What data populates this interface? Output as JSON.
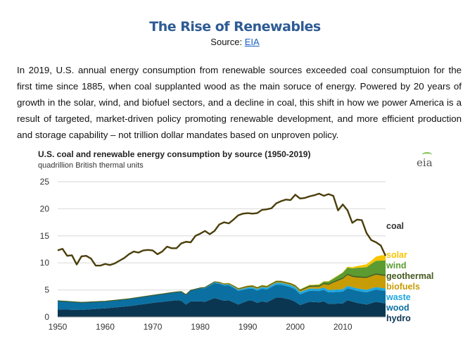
{
  "header": {
    "title": "The Rise of Renewables",
    "source_prefix": "Source: ",
    "source_link": "EIA"
  },
  "paragraph": "In 2019, U.S. annual energy consumption from renewable sources exceeded coal consumptuion for the first time since 1885, when coal supplanted wood as the main soruce of energy. Powered by 20 years of growth in the solar, wind, and biofuel sectors, and a decline in coal, this shift in how we power America is a result of targeted, market-driven policy promoting renewable development, and more efficient production and storage capability – not trillion dollar mandates based on unproven policy.",
  "logo_text": "eia",
  "chart_data": {
    "type": "area",
    "title": "U.S. coal and renewable energy consumption by source (1950-2019)",
    "subtitle": "quadrillion British thermal units",
    "xlim": [
      1950,
      2019
    ],
    "ylim": [
      0,
      25
    ],
    "x_ticks": [
      "1950",
      "1960",
      "1970",
      "1980",
      "1990",
      "2000",
      "2010"
    ],
    "y_ticks": [
      "0",
      "5",
      "10",
      "15",
      "20",
      "25"
    ],
    "grid": true,
    "legend_placement": "right",
    "stacked_series": [
      {
        "name": "hydro",
        "color": "#0b3651",
        "points": [
          [
            1950,
            1.4
          ],
          [
            1955,
            1.3
          ],
          [
            1960,
            1.6
          ],
          [
            1965,
            2.0
          ],
          [
            1970,
            2.6
          ],
          [
            1975,
            3.1
          ],
          [
            1976,
            3.0
          ],
          [
            1977,
            2.3
          ],
          [
            1978,
            2.9
          ],
          [
            1980,
            2.9
          ],
          [
            1981,
            2.8
          ],
          [
            1983,
            3.5
          ],
          [
            1985,
            3.0
          ],
          [
            1986,
            3.1
          ],
          [
            1988,
            2.3
          ],
          [
            1990,
            3.0
          ],
          [
            1991,
            3.0
          ],
          [
            1992,
            2.6
          ],
          [
            1993,
            2.9
          ],
          [
            1994,
            2.7
          ],
          [
            1996,
            3.6
          ],
          [
            1997,
            3.6
          ],
          [
            1999,
            3.2
          ],
          [
            2000,
            2.8
          ],
          [
            2001,
            2.2
          ],
          [
            2003,
            2.8
          ],
          [
            2005,
            2.7
          ],
          [
            2006,
            2.9
          ],
          [
            2007,
            2.4
          ],
          [
            2010,
            2.5
          ],
          [
            2011,
            3.1
          ],
          [
            2013,
            2.6
          ],
          [
            2015,
            2.3
          ],
          [
            2017,
            2.8
          ],
          [
            2019,
            2.5
          ]
        ]
      },
      {
        "name": "wood",
        "color": "#0b70a1",
        "points": [
          [
            1950,
            1.6
          ],
          [
            1955,
            1.4
          ],
          [
            1960,
            1.3
          ],
          [
            1970,
            1.4
          ],
          [
            1975,
            1.5
          ],
          [
            1977,
            1.8
          ],
          [
            1980,
            2.4
          ],
          [
            1984,
            2.9
          ],
          [
            1987,
            2.7
          ],
          [
            1990,
            2.2
          ],
          [
            1995,
            2.4
          ],
          [
            2000,
            2.3
          ],
          [
            2001,
            2.0
          ],
          [
            2005,
            2.1
          ],
          [
            2010,
            2.2
          ],
          [
            2019,
            2.3
          ]
        ]
      },
      {
        "name": "waste",
        "color": "#1ea7e1",
        "points": [
          [
            1950,
            0
          ],
          [
            1979,
            0
          ],
          [
            1982,
            0.1
          ],
          [
            1988,
            0.2
          ],
          [
            1992,
            0.3
          ],
          [
            2000,
            0.4
          ],
          [
            2010,
            0.45
          ],
          [
            2019,
            0.45
          ]
        ]
      },
      {
        "name": "biofuels",
        "color": "#c79c05",
        "points": [
          [
            1950,
            0
          ],
          [
            1980,
            0
          ],
          [
            1985,
            0.05
          ],
          [
            1990,
            0.1
          ],
          [
            2000,
            0.15
          ],
          [
            2003,
            0.3
          ],
          [
            2005,
            0.35
          ],
          [
            2006,
            0.6
          ],
          [
            2008,
            1.3
          ],
          [
            2010,
            1.9
          ],
          [
            2011,
            2.0
          ],
          [
            2012,
            1.9
          ],
          [
            2015,
            2.2
          ],
          [
            2017,
            2.3
          ],
          [
            2019,
            2.3
          ]
        ]
      },
      {
        "name": "geothermal",
        "color": "#445a1e",
        "points": [
          [
            1950,
            0
          ],
          [
            1970,
            0.01
          ],
          [
            1980,
            0.05
          ],
          [
            1985,
            0.1
          ],
          [
            1990,
            0.16
          ],
          [
            2000,
            0.16
          ],
          [
            2010,
            0.21
          ],
          [
            2019,
            0.21
          ]
        ]
      },
      {
        "name": "wind",
        "color": "#5b9b31",
        "points": [
          [
            1950,
            0
          ],
          [
            1999,
            0
          ],
          [
            2000,
            0.06
          ],
          [
            2005,
            0.18
          ],
          [
            2008,
            0.55
          ],
          [
            2010,
            0.92
          ],
          [
            2011,
            1.17
          ],
          [
            2012,
            1.34
          ],
          [
            2013,
            1.6
          ],
          [
            2015,
            1.78
          ],
          [
            2016,
            2.1
          ],
          [
            2017,
            2.34
          ],
          [
            2019,
            2.7
          ]
        ]
      },
      {
        "name": "solar",
        "color": "#f6c500",
        "points": [
          [
            1950,
            0
          ],
          [
            1983,
            0
          ],
          [
            1985,
            0.06
          ],
          [
            2000,
            0.06
          ],
          [
            2010,
            0.09
          ],
          [
            2012,
            0.23
          ],
          [
            2013,
            0.31
          ],
          [
            2015,
            0.53
          ],
          [
            2016,
            0.57
          ],
          [
            2017,
            0.78
          ],
          [
            2018,
            0.95
          ],
          [
            2019,
            1.0
          ]
        ]
      }
    ],
    "line_series": {
      "name": "coal",
      "color": "#4a3e0a",
      "values": [
        12.3,
        12.6,
        11.3,
        11.4,
        9.7,
        11.2,
        11.3,
        10.8,
        9.5,
        9.5,
        9.8,
        9.6,
        9.9,
        10.4,
        10.9,
        11.6,
        12.1,
        11.9,
        12.3,
        12.4,
        12.3,
        11.6,
        12.1,
        13.0,
        12.7,
        12.7,
        13.6,
        13.9,
        13.8,
        15.0,
        15.4,
        15.9,
        15.3,
        15.9,
        17.1,
        17.5,
        17.3,
        18.0,
        18.8,
        19.1,
        19.2,
        19.1,
        19.2,
        19.8,
        19.9,
        20.1,
        21.0,
        21.4,
        21.7,
        21.6,
        22.6,
        21.9,
        22.0,
        22.3,
        22.5,
        22.8,
        22.4,
        22.7,
        22.4,
        19.7,
        20.8,
        19.7,
        17.4,
        18.0,
        17.9,
        15.5,
        14.2,
        13.8,
        13.2,
        11.3
      ]
    },
    "labels": [
      {
        "text": "coal",
        "color": "#333333"
      },
      {
        "text": "solar",
        "color": "#f6c500"
      },
      {
        "text": "wind",
        "color": "#5b9b31"
      },
      {
        "text": "geothermal",
        "color": "#445a1e"
      },
      {
        "text": "biofuels",
        "color": "#c79c05"
      },
      {
        "text": "waste",
        "color": "#1ea7e1"
      },
      {
        "text": "wood",
        "color": "#0b70a1"
      },
      {
        "text": "hydro",
        "color": "#0b3651"
      }
    ]
  }
}
